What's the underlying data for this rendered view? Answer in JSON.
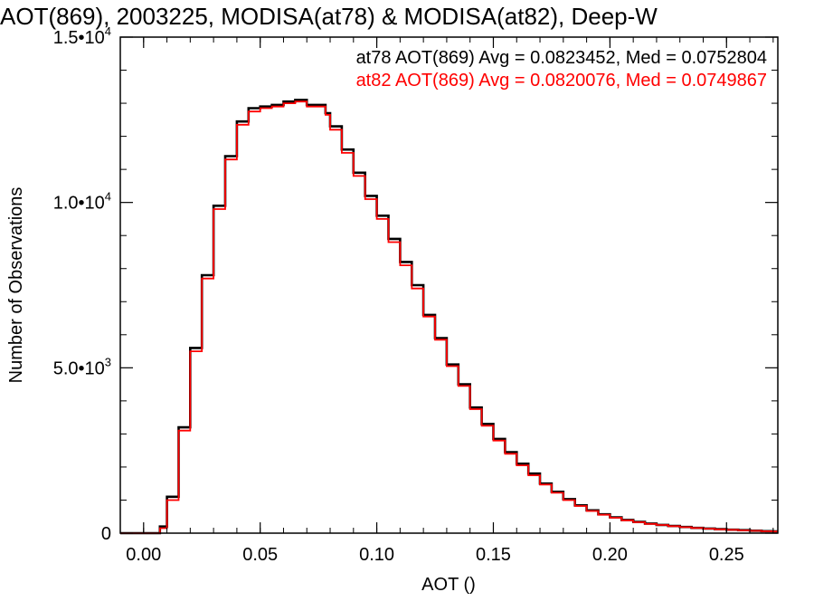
{
  "chart_data": {
    "type": "line",
    "step": true,
    "title": "AOT(869), 2003225, MODISA(at78) & MODISA(at82), Deep-W",
    "xlabel": "AOT ()",
    "ylabel": "Number of Observations",
    "xlim": [
      -0.01,
      0.272
    ],
    "ylim": [
      0,
      15000
    ],
    "x_ticks": [
      {
        "value": 0.0,
        "label": "0.00"
      },
      {
        "value": 0.05,
        "label": "0.05"
      },
      {
        "value": 0.1,
        "label": "0.10"
      },
      {
        "value": 0.15,
        "label": "0.15"
      },
      {
        "value": 0.2,
        "label": "0.20"
      },
      {
        "value": 0.25,
        "label": "0.25"
      }
    ],
    "y_ticks": [
      {
        "value": 0,
        "mant": "0",
        "exp": ""
      },
      {
        "value": 5000,
        "mant": "5.0•10",
        "exp": "3"
      },
      {
        "value": 10000,
        "mant": "1.0•10",
        "exp": "4"
      },
      {
        "value": 15000,
        "mant": "1.5•10",
        "exp": "4"
      }
    ],
    "grid": false,
    "legend_placement": "top-right",
    "x": [
      -0.01,
      0.005,
      0.007,
      0.01,
      0.015,
      0.02,
      0.025,
      0.03,
      0.035,
      0.04,
      0.045,
      0.05,
      0.055,
      0.06,
      0.065,
      0.07,
      0.075,
      0.078,
      0.08,
      0.085,
      0.09,
      0.095,
      0.1,
      0.105,
      0.11,
      0.115,
      0.12,
      0.125,
      0.13,
      0.135,
      0.14,
      0.145,
      0.15,
      0.155,
      0.16,
      0.165,
      0.17,
      0.175,
      0.18,
      0.185,
      0.19,
      0.195,
      0.2,
      0.205,
      0.21,
      0.215,
      0.22,
      0.225,
      0.23,
      0.235,
      0.24,
      0.245,
      0.25,
      0.255,
      0.26,
      0.265,
      0.27
    ],
    "series": [
      {
        "name": "at78",
        "color": "#000000",
        "stats_label": "at78 AOT(869) Avg = 0.0823452, Med = 0.0752804",
        "values": [
          0,
          0,
          200,
          1100,
          3200,
          5600,
          7800,
          9900,
          11400,
          12450,
          12850,
          12900,
          12950,
          13050,
          13100,
          12950,
          12950,
          12700,
          12300,
          11600,
          10900,
          10200,
          9600,
          8900,
          8200,
          7500,
          6600,
          5900,
          5100,
          4500,
          3800,
          3300,
          2850,
          2450,
          2100,
          1800,
          1500,
          1250,
          1030,
          840,
          690,
          570,
          480,
          400,
          340,
          290,
          250,
          215,
          185,
          160,
          140,
          120,
          105,
          90,
          75,
          60,
          55
        ]
      },
      {
        "name": "at82",
        "color": "#ff0000",
        "stats_label": "at82 AOT(869) Avg = 0.0820076, Med = 0.0749867",
        "values": [
          0,
          0,
          150,
          1000,
          3100,
          5500,
          7700,
          9800,
          11300,
          12350,
          12750,
          12850,
          12900,
          13000,
          13050,
          12900,
          12900,
          12650,
          12200,
          11500,
          10800,
          10100,
          9500,
          8800,
          8100,
          7400,
          6550,
          5850,
          5050,
          4450,
          3750,
          3250,
          2800,
          2400,
          2050,
          1750,
          1470,
          1220,
          1000,
          820,
          670,
          555,
          465,
          390,
          330,
          280,
          245,
          210,
          180,
          155,
          135,
          115,
          100,
          85,
          70,
          58,
          50
        ]
      }
    ]
  }
}
